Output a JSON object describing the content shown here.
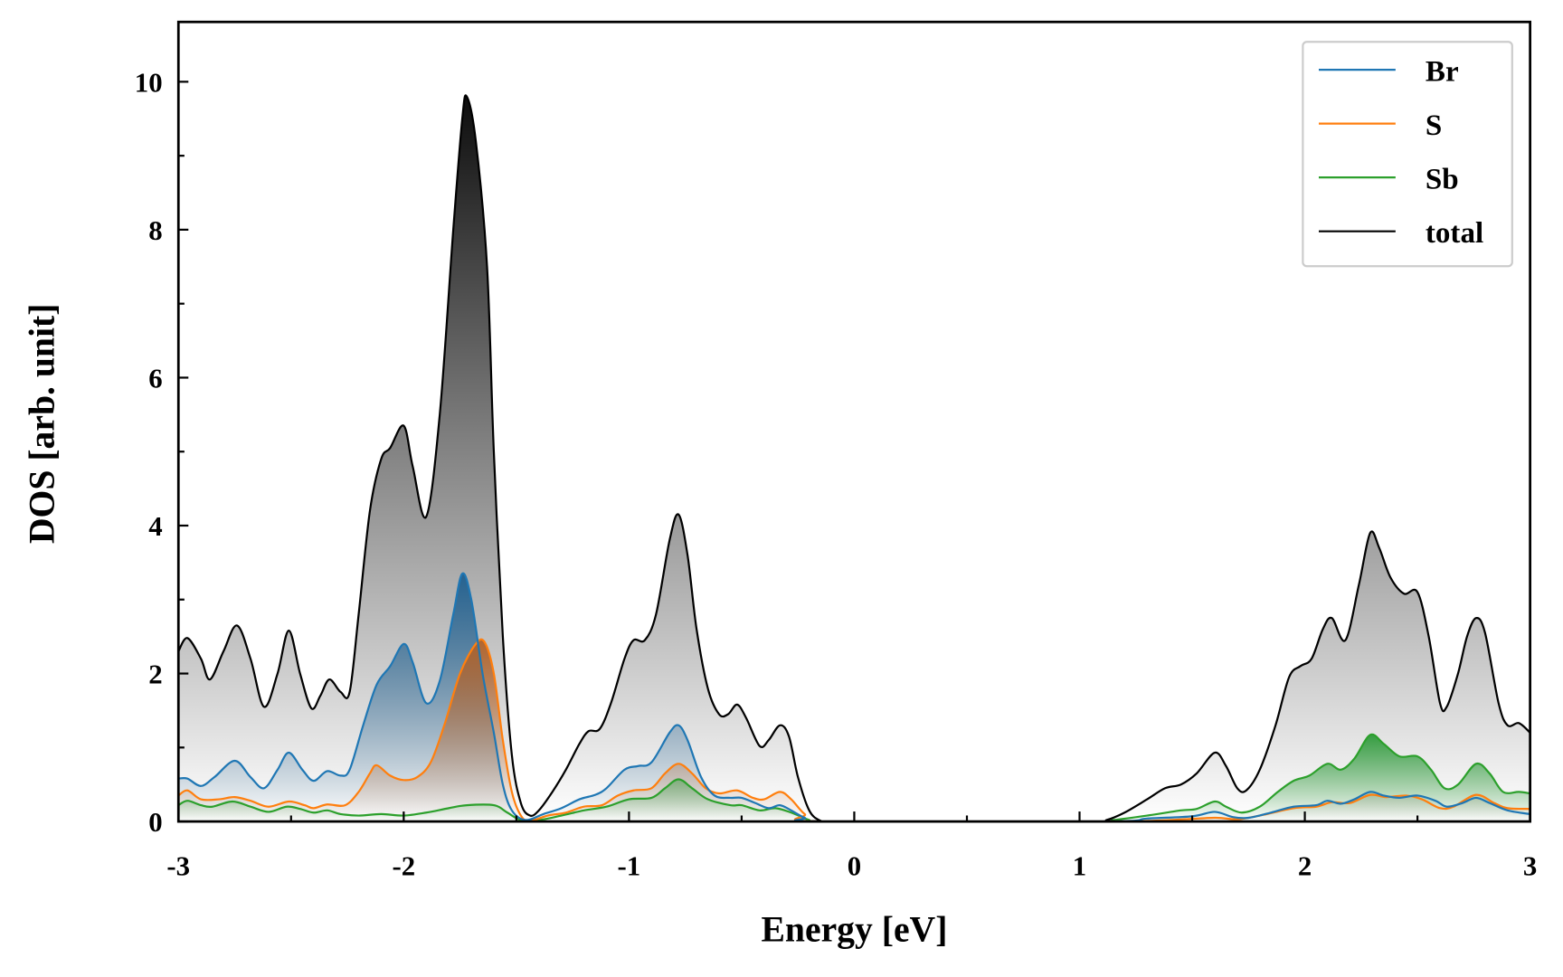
{
  "chart_data": {
    "type": "area",
    "title": "",
    "xlabel": "Energy [eV]",
    "ylabel": "DOS [arb. unit]",
    "xlim": [
      -3,
      3
    ],
    "ylim": [
      0,
      10.8
    ],
    "xticks": [
      -3,
      -2,
      -1,
      0,
      1,
      2,
      3
    ],
    "xtick_labels": [
      "-3",
      "-2",
      "-1",
      "0",
      "1",
      "2",
      "3"
    ],
    "yticks": [
      0,
      2,
      4,
      6,
      8,
      10
    ],
    "ytick_labels": [
      "0",
      "2",
      "4",
      "6",
      "8",
      "10"
    ],
    "grid": false,
    "legend_position": "top-right",
    "series": [
      {
        "name": "total",
        "color": "#000000",
        "fill": "#000000",
        "points": [
          [
            -3.0,
            2.3
          ],
          [
            -2.96,
            2.48
          ],
          [
            -2.9,
            2.2
          ],
          [
            -2.86,
            1.92
          ],
          [
            -2.8,
            2.3
          ],
          [
            -2.74,
            2.65
          ],
          [
            -2.68,
            2.2
          ],
          [
            -2.62,
            1.55
          ],
          [
            -2.56,
            2.0
          ],
          [
            -2.51,
            2.58
          ],
          [
            -2.46,
            2.0
          ],
          [
            -2.41,
            1.53
          ],
          [
            -2.37,
            1.7
          ],
          [
            -2.33,
            1.92
          ],
          [
            -2.28,
            1.75
          ],
          [
            -2.24,
            1.75
          ],
          [
            -2.2,
            2.8
          ],
          [
            -2.15,
            4.2
          ],
          [
            -2.1,
            4.9
          ],
          [
            -2.06,
            5.05
          ],
          [
            -2.0,
            5.35
          ],
          [
            -1.96,
            4.8
          ],
          [
            -1.9,
            4.12
          ],
          [
            -1.84,
            5.5
          ],
          [
            -1.78,
            8.0
          ],
          [
            -1.74,
            9.5
          ],
          [
            -1.72,
            9.8
          ],
          [
            -1.68,
            9.2
          ],
          [
            -1.63,
            7.5
          ],
          [
            -1.6,
            5.0
          ],
          [
            -1.56,
            2.5
          ],
          [
            -1.52,
            0.9
          ],
          [
            -1.48,
            0.25
          ],
          [
            -1.44,
            0.08
          ],
          [
            -1.4,
            0.15
          ],
          [
            -1.34,
            0.4
          ],
          [
            -1.28,
            0.7
          ],
          [
            -1.22,
            1.05
          ],
          [
            -1.18,
            1.22
          ],
          [
            -1.13,
            1.25
          ],
          [
            -1.08,
            1.6
          ],
          [
            -1.02,
            2.2
          ],
          [
            -0.98,
            2.45
          ],
          [
            -0.93,
            2.45
          ],
          [
            -0.88,
            2.8
          ],
          [
            -0.82,
            3.8
          ],
          [
            -0.78,
            4.15
          ],
          [
            -0.74,
            3.6
          ],
          [
            -0.7,
            2.6
          ],
          [
            -0.65,
            1.8
          ],
          [
            -0.6,
            1.45
          ],
          [
            -0.56,
            1.45
          ],
          [
            -0.52,
            1.58
          ],
          [
            -0.48,
            1.4
          ],
          [
            -0.42,
            1.02
          ],
          [
            -0.38,
            1.1
          ],
          [
            -0.33,
            1.3
          ],
          [
            -0.29,
            1.15
          ],
          [
            -0.25,
            0.6
          ],
          [
            -0.2,
            0.15
          ],
          [
            -0.15,
            0.01
          ],
          [
            -0.1,
            0
          ],
          [
            1.05,
            0
          ],
          [
            1.12,
            0.02
          ],
          [
            1.2,
            0.12
          ],
          [
            1.3,
            0.3
          ],
          [
            1.38,
            0.45
          ],
          [
            1.45,
            0.5
          ],
          [
            1.52,
            0.65
          ],
          [
            1.6,
            0.93
          ],
          [
            1.65,
            0.75
          ],
          [
            1.7,
            0.45
          ],
          [
            1.74,
            0.42
          ],
          [
            1.8,
            0.7
          ],
          [
            1.87,
            1.3
          ],
          [
            1.93,
            1.95
          ],
          [
            1.98,
            2.1
          ],
          [
            2.03,
            2.2
          ],
          [
            2.08,
            2.6
          ],
          [
            2.12,
            2.75
          ],
          [
            2.18,
            2.45
          ],
          [
            2.24,
            3.2
          ],
          [
            2.29,
            3.9
          ],
          [
            2.33,
            3.7
          ],
          [
            2.38,
            3.3
          ],
          [
            2.44,
            3.08
          ],
          [
            2.5,
            3.1
          ],
          [
            2.55,
            2.5
          ],
          [
            2.6,
            1.6
          ],
          [
            2.63,
            1.55
          ],
          [
            2.68,
            2.0
          ],
          [
            2.72,
            2.5
          ],
          [
            2.76,
            2.75
          ],
          [
            2.8,
            2.55
          ],
          [
            2.86,
            1.6
          ],
          [
            2.9,
            1.3
          ],
          [
            2.95,
            1.33
          ],
          [
            3.0,
            1.2
          ]
        ]
      },
      {
        "name": "Br",
        "color": "#1f77b4",
        "fill": "#1f5f8f",
        "points": [
          [
            -3,
            0.58
          ],
          [
            -2.96,
            0.58
          ],
          [
            -2.9,
            0.48
          ],
          [
            -2.84,
            0.6
          ],
          [
            -2.75,
            0.82
          ],
          [
            -2.68,
            0.6
          ],
          [
            -2.62,
            0.45
          ],
          [
            -2.56,
            0.7
          ],
          [
            -2.51,
            0.93
          ],
          [
            -2.45,
            0.7
          ],
          [
            -2.4,
            0.55
          ],
          [
            -2.34,
            0.68
          ],
          [
            -2.28,
            0.62
          ],
          [
            -2.24,
            0.7
          ],
          [
            -2.18,
            1.3
          ],
          [
            -2.12,
            1.85
          ],
          [
            -2.06,
            2.1
          ],
          [
            -2.0,
            2.4
          ],
          [
            -1.96,
            2.15
          ],
          [
            -1.9,
            1.6
          ],
          [
            -1.84,
            1.9
          ],
          [
            -1.78,
            2.8
          ],
          [
            -1.74,
            3.35
          ],
          [
            -1.7,
            3.0
          ],
          [
            -1.65,
            2.0
          ],
          [
            -1.6,
            1.2
          ],
          [
            -1.56,
            0.5
          ],
          [
            -1.52,
            0.15
          ],
          [
            -1.46,
            0.02
          ],
          [
            -1.38,
            0.1
          ],
          [
            -1.3,
            0.18
          ],
          [
            -1.22,
            0.3
          ],
          [
            -1.15,
            0.36
          ],
          [
            -1.1,
            0.45
          ],
          [
            -1.02,
            0.7
          ],
          [
            -0.96,
            0.75
          ],
          [
            -0.9,
            0.8
          ],
          [
            -0.82,
            1.2
          ],
          [
            -0.78,
            1.3
          ],
          [
            -0.74,
            1.1
          ],
          [
            -0.68,
            0.6
          ],
          [
            -0.62,
            0.35
          ],
          [
            -0.55,
            0.32
          ],
          [
            -0.5,
            0.32
          ],
          [
            -0.44,
            0.25
          ],
          [
            -0.38,
            0.18
          ],
          [
            -0.33,
            0.22
          ],
          [
            -0.28,
            0.15
          ],
          [
            -0.22,
            0.05
          ],
          [
            -0.15,
            0
          ],
          [
            1.1,
            0
          ],
          [
            1.3,
            0.04
          ],
          [
            1.5,
            0.07
          ],
          [
            1.6,
            0.13
          ],
          [
            1.68,
            0.06
          ],
          [
            1.75,
            0.05
          ],
          [
            1.85,
            0.12
          ],
          [
            1.95,
            0.2
          ],
          [
            2.05,
            0.22
          ],
          [
            2.1,
            0.28
          ],
          [
            2.16,
            0.24
          ],
          [
            2.22,
            0.3
          ],
          [
            2.29,
            0.4
          ],
          [
            2.35,
            0.35
          ],
          [
            2.42,
            0.32
          ],
          [
            2.5,
            0.35
          ],
          [
            2.58,
            0.28
          ],
          [
            2.63,
            0.2
          ],
          [
            2.7,
            0.25
          ],
          [
            2.76,
            0.32
          ],
          [
            2.82,
            0.25
          ],
          [
            2.9,
            0.15
          ],
          [
            3,
            0.1
          ]
        ]
      },
      {
        "name": "S",
        "color": "#ff7f0e",
        "fill": "#b0622a",
        "points": [
          [
            -3,
            0.35
          ],
          [
            -2.96,
            0.42
          ],
          [
            -2.9,
            0.3
          ],
          [
            -2.82,
            0.3
          ],
          [
            -2.75,
            0.33
          ],
          [
            -2.68,
            0.28
          ],
          [
            -2.6,
            0.2
          ],
          [
            -2.51,
            0.27
          ],
          [
            -2.44,
            0.22
          ],
          [
            -2.4,
            0.18
          ],
          [
            -2.34,
            0.23
          ],
          [
            -2.26,
            0.22
          ],
          [
            -2.2,
            0.4
          ],
          [
            -2.15,
            0.65
          ],
          [
            -2.12,
            0.76
          ],
          [
            -2.06,
            0.62
          ],
          [
            -2.0,
            0.56
          ],
          [
            -1.94,
            0.6
          ],
          [
            -1.88,
            0.8
          ],
          [
            -1.82,
            1.3
          ],
          [
            -1.75,
            2.0
          ],
          [
            -1.68,
            2.4
          ],
          [
            -1.64,
            2.42
          ],
          [
            -1.6,
            2.0
          ],
          [
            -1.56,
            1.1
          ],
          [
            -1.52,
            0.4
          ],
          [
            -1.48,
            0.08
          ],
          [
            -1.44,
            0.01
          ],
          [
            -1.36,
            0.08
          ],
          [
            -1.28,
            0.12
          ],
          [
            -1.2,
            0.2
          ],
          [
            -1.12,
            0.22
          ],
          [
            -1.05,
            0.35
          ],
          [
            -0.98,
            0.42
          ],
          [
            -0.9,
            0.45
          ],
          [
            -0.84,
            0.65
          ],
          [
            -0.78,
            0.78
          ],
          [
            -0.72,
            0.65
          ],
          [
            -0.66,
            0.45
          ],
          [
            -0.6,
            0.38
          ],
          [
            -0.52,
            0.42
          ],
          [
            -0.45,
            0.32
          ],
          [
            -0.4,
            0.3
          ],
          [
            -0.33,
            0.4
          ],
          [
            -0.28,
            0.3
          ],
          [
            -0.22,
            0.1
          ],
          [
            -0.15,
            0
          ],
          [
            1.1,
            0
          ],
          [
            1.4,
            0.02
          ],
          [
            1.6,
            0.05
          ],
          [
            1.7,
            0.03
          ],
          [
            1.8,
            0.08
          ],
          [
            1.95,
            0.18
          ],
          [
            2.05,
            0.2
          ],
          [
            2.12,
            0.26
          ],
          [
            2.2,
            0.25
          ],
          [
            2.29,
            0.36
          ],
          [
            2.36,
            0.33
          ],
          [
            2.45,
            0.35
          ],
          [
            2.52,
            0.3
          ],
          [
            2.6,
            0.18
          ],
          [
            2.66,
            0.2
          ],
          [
            2.76,
            0.36
          ],
          [
            2.84,
            0.25
          ],
          [
            2.9,
            0.18
          ],
          [
            3,
            0.17
          ]
        ]
      },
      {
        "name": "Sb",
        "color": "#2ca02c",
        "fill": "#2e9a3a",
        "points": [
          [
            -3,
            0.22
          ],
          [
            -2.96,
            0.28
          ],
          [
            -2.9,
            0.22
          ],
          [
            -2.85,
            0.2
          ],
          [
            -2.76,
            0.27
          ],
          [
            -2.68,
            0.2
          ],
          [
            -2.6,
            0.13
          ],
          [
            -2.52,
            0.2
          ],
          [
            -2.46,
            0.17
          ],
          [
            -2.4,
            0.12
          ],
          [
            -2.34,
            0.15
          ],
          [
            -2.28,
            0.1
          ],
          [
            -2.2,
            0.08
          ],
          [
            -2.1,
            0.1
          ],
          [
            -2.0,
            0.08
          ],
          [
            -1.9,
            0.12
          ],
          [
            -1.8,
            0.18
          ],
          [
            -1.72,
            0.22
          ],
          [
            -1.6,
            0.22
          ],
          [
            -1.54,
            0.12
          ],
          [
            -1.48,
            0.02
          ],
          [
            -1.4,
            0.02
          ],
          [
            -1.3,
            0.08
          ],
          [
            -1.2,
            0.15
          ],
          [
            -1.1,
            0.2
          ],
          [
            -1.0,
            0.3
          ],
          [
            -0.9,
            0.32
          ],
          [
            -0.84,
            0.45
          ],
          [
            -0.78,
            0.57
          ],
          [
            -0.72,
            0.45
          ],
          [
            -0.65,
            0.3
          ],
          [
            -0.55,
            0.22
          ],
          [
            -0.5,
            0.22
          ],
          [
            -0.42,
            0.15
          ],
          [
            -0.35,
            0.18
          ],
          [
            -0.28,
            0.12
          ],
          [
            -0.2,
            0.02
          ],
          [
            -0.15,
            0
          ],
          [
            1.05,
            0
          ],
          [
            1.15,
            0.02
          ],
          [
            1.3,
            0.08
          ],
          [
            1.45,
            0.15
          ],
          [
            1.52,
            0.17
          ],
          [
            1.6,
            0.27
          ],
          [
            1.65,
            0.2
          ],
          [
            1.72,
            0.12
          ],
          [
            1.8,
            0.2
          ],
          [
            1.88,
            0.4
          ],
          [
            1.95,
            0.55
          ],
          [
            2.02,
            0.62
          ],
          [
            2.1,
            0.78
          ],
          [
            2.16,
            0.7
          ],
          [
            2.22,
            0.85
          ],
          [
            2.29,
            1.17
          ],
          [
            2.35,
            1.05
          ],
          [
            2.42,
            0.88
          ],
          [
            2.5,
            0.88
          ],
          [
            2.56,
            0.7
          ],
          [
            2.62,
            0.45
          ],
          [
            2.68,
            0.5
          ],
          [
            2.76,
            0.78
          ],
          [
            2.82,
            0.65
          ],
          [
            2.88,
            0.4
          ],
          [
            2.95,
            0.4
          ],
          [
            3,
            0.38
          ]
        ]
      }
    ],
    "legend": [
      {
        "label": "Br",
        "color": "#1f77b4"
      },
      {
        "label": "S",
        "color": "#ff7f0e"
      },
      {
        "label": "Sb",
        "color": "#2ca02c"
      },
      {
        "label": "total",
        "color": "#000000"
      }
    ]
  }
}
